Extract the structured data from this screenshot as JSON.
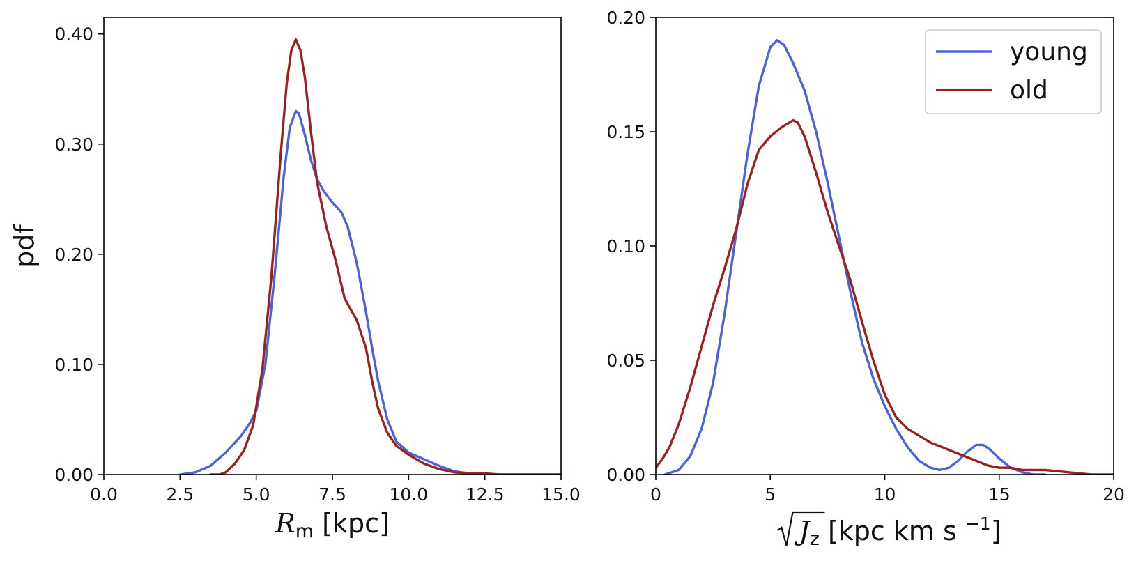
{
  "colors": {
    "young": "#4a63d8",
    "old": "#9b2020"
  },
  "chart_data": [
    {
      "type": "line",
      "ylabel": "pdf",
      "xlabel": {
        "main": "R",
        "sub": "m",
        "unit": "[kpc]"
      },
      "xlim": [
        0,
        15
      ],
      "ylim": [
        0,
        0.415
      ],
      "xticks": [
        0,
        2.5,
        5,
        7.5,
        10,
        12.5,
        15
      ],
      "xtick_labels": [
        "0.0",
        "2.5",
        "5.0",
        "7.5",
        "10.0",
        "12.5",
        "15.0"
      ],
      "yticks": [
        0,
        0.1,
        0.2,
        0.3,
        0.4
      ],
      "ytick_labels": [
        "0.00",
        "0.10",
        "0.20",
        "0.30",
        "0.40"
      ],
      "series": [
        {
          "name": "young",
          "color": "#4a63d8",
          "x": [
            2.5,
            3.0,
            3.5,
            4.0,
            4.5,
            4.8,
            5.0,
            5.3,
            5.6,
            5.9,
            6.1,
            6.3,
            6.4,
            6.6,
            6.8,
            7.0,
            7.2,
            7.5,
            7.8,
            8.0,
            8.3,
            8.6,
            8.8,
            9.0,
            9.3,
            9.6,
            10.0,
            10.5,
            11.0,
            11.5,
            12.0,
            12.5,
            13.0,
            14.0,
            15.0
          ],
          "y": [
            0.0,
            0.002,
            0.008,
            0.02,
            0.035,
            0.047,
            0.058,
            0.1,
            0.18,
            0.27,
            0.315,
            0.33,
            0.328,
            0.308,
            0.285,
            0.268,
            0.258,
            0.247,
            0.238,
            0.225,
            0.192,
            0.148,
            0.115,
            0.085,
            0.05,
            0.03,
            0.02,
            0.014,
            0.008,
            0.003,
            0.001,
            0.0,
            0.0,
            0.0,
            0.0
          ]
        },
        {
          "name": "old",
          "color": "#9b2020",
          "x": [
            3.5,
            3.8,
            4.0,
            4.3,
            4.6,
            4.9,
            5.2,
            5.5,
            5.8,
            6.0,
            6.15,
            6.3,
            6.45,
            6.6,
            6.8,
            7.0,
            7.3,
            7.6,
            7.9,
            8.1,
            8.3,
            8.6,
            8.8,
            9.0,
            9.3,
            9.6,
            10.0,
            10.5,
            11.0,
            11.5,
            12.0,
            12.5,
            13.0,
            14.0,
            15.0
          ],
          "y": [
            0.0,
            0.0,
            0.002,
            0.01,
            0.022,
            0.045,
            0.095,
            0.18,
            0.29,
            0.355,
            0.385,
            0.395,
            0.385,
            0.36,
            0.31,
            0.265,
            0.225,
            0.195,
            0.16,
            0.15,
            0.14,
            0.115,
            0.085,
            0.06,
            0.038,
            0.026,
            0.018,
            0.01,
            0.005,
            0.002,
            0.001,
            0.001,
            0.0,
            0.0,
            0.0
          ]
        }
      ]
    },
    {
      "type": "line",
      "ylabel": "",
      "xlabel": {
        "main": "J",
        "sub": "z",
        "unit": "[kpc km s",
        "unit_sup": "−1",
        "unit_end": "]"
      },
      "xlim": [
        0,
        20
      ],
      "ylim": [
        0,
        0.2
      ],
      "xticks": [
        0,
        5,
        10,
        15,
        20
      ],
      "xtick_labels": [
        "0",
        "5",
        "10",
        "15",
        "20"
      ],
      "yticks": [
        0,
        0.05,
        0.1,
        0.15,
        0.2
      ],
      "ytick_labels": [
        "0.00",
        "0.05",
        "0.10",
        "0.15",
        "0.20"
      ],
      "legend": {
        "position": "top-right",
        "entries": [
          "young",
          "old"
        ]
      },
      "series": [
        {
          "name": "young",
          "color": "#4a63d8",
          "x": [
            0.4,
            1.0,
            1.5,
            2.0,
            2.5,
            3.0,
            3.5,
            4.0,
            4.5,
            5.0,
            5.3,
            5.6,
            6.0,
            6.5,
            7.0,
            7.5,
            8.0,
            8.5,
            9.0,
            9.5,
            10.0,
            10.5,
            11.0,
            11.5,
            12.0,
            12.4,
            12.8,
            13.2,
            13.6,
            14.0,
            14.3,
            14.6,
            15.0,
            15.5,
            16.0,
            16.5,
            17.0
          ],
          "y": [
            0.0,
            0.002,
            0.008,
            0.02,
            0.04,
            0.07,
            0.105,
            0.14,
            0.17,
            0.187,
            0.19,
            0.188,
            0.18,
            0.168,
            0.15,
            0.128,
            0.104,
            0.08,
            0.058,
            0.042,
            0.03,
            0.02,
            0.012,
            0.006,
            0.003,
            0.002,
            0.003,
            0.006,
            0.01,
            0.013,
            0.013,
            0.011,
            0.007,
            0.003,
            0.001,
            0.0,
            0.0
          ]
        },
        {
          "name": "old",
          "color": "#9b2020",
          "x": [
            0.0,
            0.3,
            0.6,
            1.0,
            1.5,
            2.0,
            2.5,
            3.0,
            3.5,
            4.0,
            4.5,
            5.0,
            5.5,
            6.0,
            6.2,
            6.5,
            7.0,
            7.5,
            8.0,
            8.5,
            9.0,
            9.5,
            10.0,
            10.5,
            11.0,
            11.5,
            12.0,
            12.5,
            13.0,
            13.5,
            14.0,
            14.5,
            15.0,
            15.5,
            16.0,
            17.0,
            18.0,
            19.0,
            20.0
          ],
          "y": [
            0.003,
            0.007,
            0.012,
            0.022,
            0.038,
            0.056,
            0.074,
            0.09,
            0.107,
            0.127,
            0.142,
            0.148,
            0.152,
            0.155,
            0.154,
            0.148,
            0.132,
            0.115,
            0.1,
            0.085,
            0.067,
            0.05,
            0.035,
            0.025,
            0.02,
            0.017,
            0.014,
            0.012,
            0.01,
            0.008,
            0.006,
            0.004,
            0.003,
            0.003,
            0.002,
            0.002,
            0.001,
            0.0,
            0.0
          ]
        }
      ]
    }
  ]
}
